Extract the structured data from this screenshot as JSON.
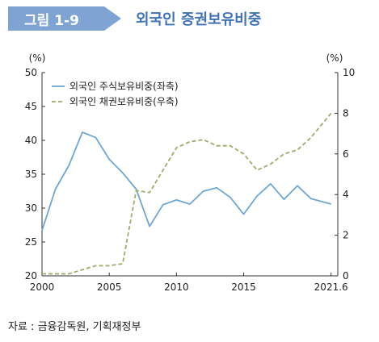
{
  "header": {
    "figure_label": "그림 1-9",
    "title": "외국인 증권보유비중"
  },
  "source_note": "자료 : 금융감독원, 기획재정부",
  "colors": {
    "header_bg": "#7fa3d3",
    "title": "#3f73b6",
    "stock_series": "#6fa6d6",
    "bond_series": "#9cae6e"
  },
  "chart_data": {
    "type": "line",
    "x": [
      2000,
      2001,
      2002,
      2003,
      2004,
      2005,
      2006,
      2007,
      2008,
      2009,
      2010,
      2011,
      2012,
      2013,
      2014,
      2015,
      2016,
      2017,
      2018,
      2019,
      2020,
      2021.5
    ],
    "x_ticks": [
      2000,
      2005,
      2010,
      2015,
      2021.5
    ],
    "x_tick_labels": [
      "2000",
      "2005",
      "2010",
      "2015",
      "2021.6"
    ],
    "xlim": [
      2000,
      2022
    ],
    "left_axis": {
      "unit": "(%)",
      "ylim": [
        20,
        50
      ],
      "ticks": [
        20,
        25,
        30,
        35,
        40,
        45,
        50
      ]
    },
    "right_axis": {
      "unit": "(%)",
      "ylim": [
        0,
        10
      ],
      "ticks": [
        0,
        2,
        4,
        6,
        8,
        10
      ]
    },
    "legend_position": "top-left",
    "grid": false,
    "series": [
      {
        "name": "외국인 주식보유비중(좌축)",
        "axis": "left",
        "style": "solid",
        "values": [
          26.7,
          32.8,
          36.3,
          41.2,
          40.4,
          37.2,
          35.2,
          32.8,
          27.3,
          30.5,
          31.2,
          30.6,
          32.5,
          33.0,
          31.6,
          29.1,
          31.8,
          33.6,
          31.3,
          33.3,
          31.4,
          30.6
        ]
      },
      {
        "name": "외국인 채권보유비중(우축)",
        "axis": "right",
        "style": "dashed",
        "values": [
          0.1,
          0.1,
          0.1,
          0.3,
          0.5,
          0.5,
          0.6,
          4.2,
          4.1,
          5.2,
          6.3,
          6.6,
          6.7,
          6.4,
          6.4,
          6.0,
          5.2,
          5.5,
          6.0,
          6.2,
          6.8,
          8.0
        ]
      }
    ]
  }
}
